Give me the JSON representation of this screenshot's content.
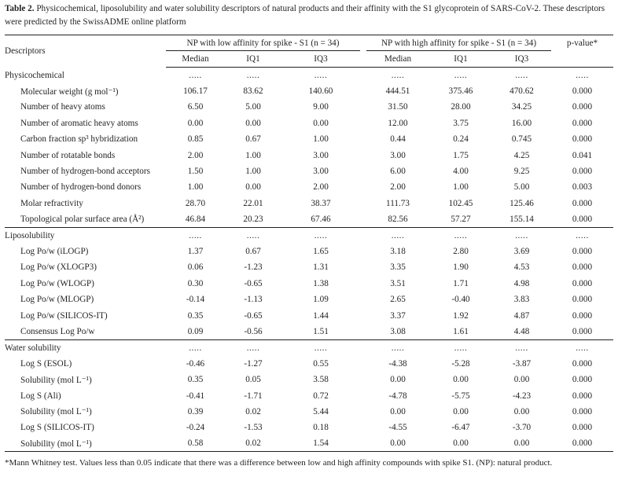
{
  "caption": {
    "label": "Table 2.",
    "text": "Physicochemical, liposolubility and water solubility descriptors of natural products and their affinity with the S1 glycoprotein of SARS-CoV-2. These descriptors were predicted by the SwissADME online platform"
  },
  "header": {
    "descriptors": "Descriptors",
    "low_group": "NP with low affinity for spike - S1 (n = 34)",
    "high_group": "NP with high affinity for spike - S1 (n = 34)",
    "pvalue": "p-value*",
    "median": "Median",
    "iq1": "IQ1",
    "iq3": "IQ3"
  },
  "sections": [
    {
      "name": "Physicochemical",
      "dots": [
        ".....",
        ".....",
        ".....",
        ".....",
        ".....",
        ".....",
        "....."
      ],
      "rows": [
        {
          "label": "Molecular weight (g mol⁻¹)",
          "cells": [
            "106.17",
            "83.62",
            "140.60",
            "444.51",
            "375.46",
            "470.62",
            "0.000"
          ]
        },
        {
          "label": "Number of heavy atoms",
          "cells": [
            "6.50",
            "5.00",
            "9.00",
            "31.50",
            "28.00",
            "34.25",
            "0.000"
          ]
        },
        {
          "label": "Number of aromatic heavy atoms",
          "cells": [
            "0.00",
            "0.00",
            "0.00",
            "12.00",
            "3.75",
            "16.00",
            "0.000"
          ]
        },
        {
          "label": "Carbon fraction sp³ hybridization",
          "cells": [
            "0.85",
            "0.67",
            "1.00",
            "0.44",
            "0.24",
            "0.745",
            "0.000"
          ]
        },
        {
          "label": "Number of rotatable bonds",
          "cells": [
            "2.00",
            "1.00",
            "3.00",
            "3.00",
            "1.75",
            "4.25",
            "0.041"
          ]
        },
        {
          "label": "Number of hydrogen-bond acceptors",
          "cells": [
            "1.50",
            "1.00",
            "3.00",
            "6.00",
            "4.00",
            "9.25",
            "0.000"
          ]
        },
        {
          "label": "Number of hydrogen-bond donors",
          "cells": [
            "1.00",
            "0.00",
            "2.00",
            "2.00",
            "1.00",
            "5.00",
            "0.003"
          ]
        },
        {
          "label": "Molar refractivity",
          "cells": [
            "28.70",
            "22.01",
            "38.37",
            "111.73",
            "102.45",
            "125.46",
            "0.000"
          ]
        },
        {
          "label": "Topological polar surface area (Å²)",
          "cells": [
            "46.84",
            "20.23",
            "67.46",
            "82.56",
            "57.27",
            "155.14",
            "0.000"
          ]
        }
      ]
    },
    {
      "name": "Liposolubility",
      "dots": [
        ".....",
        ".....",
        ".....",
        ".....",
        ".....",
        ".....",
        "....."
      ],
      "rows": [
        {
          "label": "Log Po/w (iLOGP)",
          "cells": [
            "1.37",
            "0.67",
            "1.65",
            "3.18",
            "2.80",
            "3.69",
            "0.000"
          ]
        },
        {
          "label": "Log Po/w (XLOGP3)",
          "cells": [
            "0.06",
            "-1.23",
            "1.31",
            "3.35",
            "1.90",
            "4.53",
            "0.000"
          ]
        },
        {
          "label": "Log Po/w (WLOGP)",
          "cells": [
            "0.30",
            "-0.65",
            "1.38",
            "3.51",
            "1.71",
            "4.98",
            "0.000"
          ]
        },
        {
          "label": "Log Po/w (MLOGP)",
          "cells": [
            "-0.14",
            "-1.13",
            "1.09",
            "2.65",
            "-0.40",
            "3.83",
            "0.000"
          ]
        },
        {
          "label": "Log Po/w (SILICOS-IT)",
          "cells": [
            "0.35",
            "-0.65",
            "1.44",
            "3.37",
            "1.92",
            "4.87",
            "0.000"
          ]
        },
        {
          "label": "Consensus Log Po/w",
          "cells": [
            "0.09",
            "-0.56",
            "1.51",
            "3.08",
            "1.61",
            "4.48",
            "0.000"
          ]
        }
      ]
    },
    {
      "name": "Water solubility",
      "dots": [
        ".....",
        ".....",
        ".....",
        ".....",
        ".....",
        ".....",
        "....."
      ],
      "rows": [
        {
          "label": "Log S (ESOL)",
          "cells": [
            "-0.46",
            "-1.27",
            "0.55",
            "-4.38",
            "-5.28",
            "-3.87",
            "0.000"
          ]
        },
        {
          "label": "Solubility (mol L⁻¹)",
          "cells": [
            "0.35",
            "0.05",
            "3.58",
            "0.00",
            "0.00",
            "0.00",
            "0.000"
          ]
        },
        {
          "label": "Log S (Ali)",
          "cells": [
            "-0.41",
            "-1.71",
            "0.72",
            "-4.78",
            "-5.75",
            "-4.23",
            "0.000"
          ]
        },
        {
          "label": "Solubility (mol L⁻¹)",
          "cells": [
            "0.39",
            "0.02",
            "5.44",
            "0.00",
            "0.00",
            "0.00",
            "0.000"
          ]
        },
        {
          "label": "Log S (SILICOS-IT)",
          "cells": [
            "-0.24",
            "-1.53",
            "0.18",
            "-4.55",
            "-6.47",
            "-3.70",
            "0.000"
          ]
        },
        {
          "label": "Solubility (mol L⁻¹)",
          "cells": [
            "0.58",
            "0.02",
            "1.54",
            "0.00",
            "0.00",
            "0.00",
            "0.000"
          ]
        }
      ]
    }
  ],
  "footnote": "*Mann Whitney test. Values less than 0.05 indicate that there was a difference between low and high affinity compounds with spike S1. (NP): natural product."
}
